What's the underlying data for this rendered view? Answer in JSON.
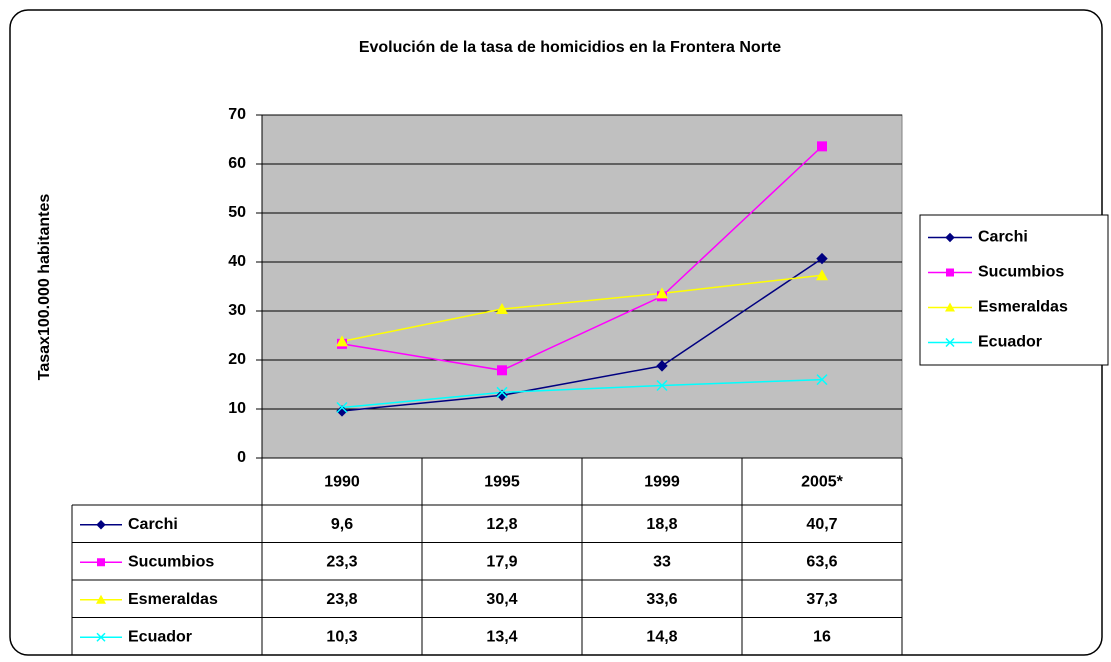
{
  "chart_data": {
    "type": "line",
    "title": "Evolución de la tasa de homicidios en la Frontera Norte",
    "y_label": "Tasax100.000 habitantes",
    "categories": [
      "1990",
      "1995",
      "1999",
      "2005*"
    ],
    "series": [
      {
        "name": "Carchi",
        "color": "#000080",
        "marker": "diamond",
        "values": [
          9.6,
          12.8,
          18.8,
          40.7
        ],
        "value_labels": [
          "9,6",
          "12,8",
          "18,8",
          "40,7"
        ]
      },
      {
        "name": "Sucumbios",
        "color": "#ff00ff",
        "marker": "square",
        "values": [
          23.3,
          17.9,
          33,
          63.6
        ],
        "value_labels": [
          "23,3",
          "17,9",
          "33",
          "63,6"
        ]
      },
      {
        "name": "Esmeraldas",
        "color": "#ffff00",
        "marker": "triangle",
        "values": [
          23.8,
          30.4,
          33.6,
          37.3
        ],
        "value_labels": [
          "23,8",
          "30,4",
          "33,6",
          "37,3"
        ]
      },
      {
        "name": "Ecuador",
        "color": "#00ffff",
        "marker": "x",
        "values": [
          10.3,
          13.4,
          14.8,
          16
        ],
        "value_labels": [
          "10,3",
          "13,4",
          "14,8",
          "16"
        ]
      }
    ],
    "ylim": [
      0,
      70
    ],
    "yticks": [
      0,
      10,
      20,
      30,
      40,
      50,
      60,
      70
    ],
    "grid": true,
    "legend": "right",
    "plot_background": "#c0c0c0"
  }
}
